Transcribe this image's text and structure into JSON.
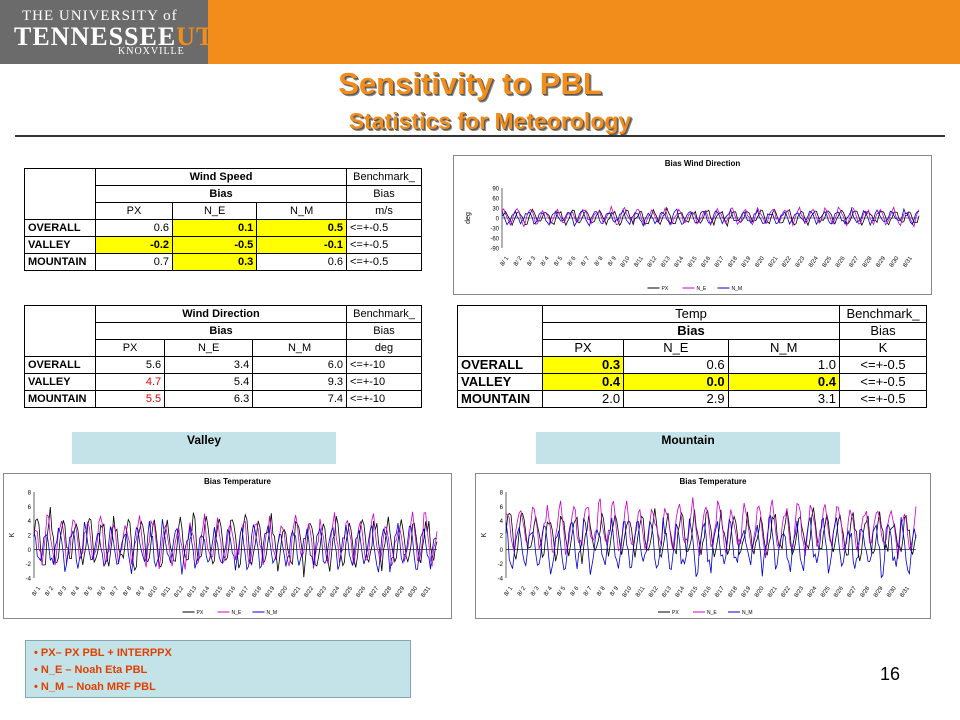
{
  "header": {
    "logo_line1": "THE UNIVERSITY of",
    "logo_line2a": "TENNESSEE",
    "logo_line2b": "UT",
    "logo_line3": "KNOXVILLE",
    "title": "Sensitivity to PBL",
    "subtitle": "Statistics for Meteorology"
  },
  "tables": {
    "wind_speed": {
      "title": "Wind Speed",
      "bench_title": "Benchmark_",
      "bias_label": "Bias",
      "bench_bias": "Bias",
      "cols": [
        "PX",
        "N_E",
        "N_M"
      ],
      "unit": "m/s",
      "rows": [
        {
          "label": "OVERALL",
          "v": [
            "0.6",
            "0.1",
            "0.5"
          ],
          "bench": "<=+-0.5"
        },
        {
          "label": "VALLEY",
          "v": [
            "-0.2",
            "-0.5",
            "-0.1"
          ],
          "bench": "<=+-0.5"
        },
        {
          "label": "MOUNTAIN",
          "v": [
            "0.7",
            "0.3",
            "0.6"
          ],
          "bench": "<=+-0.5"
        }
      ]
    },
    "wind_dir": {
      "title": "Wind Direction",
      "bench_title": "Benchmark_",
      "bias_label": "Bias",
      "bench_bias": "Bias",
      "cols": [
        "PX",
        "N_E",
        "N_M"
      ],
      "unit": "deg",
      "rows": [
        {
          "label": "OVERALL",
          "v": [
            "5.6",
            "3.4",
            "6.0"
          ],
          "bench": "<=+-10"
        },
        {
          "label": "VALLEY",
          "v": [
            "4.7",
            "5.4",
            "9.3"
          ],
          "bench": "<=+-10"
        },
        {
          "label": "MOUNTAIN",
          "v": [
            "5.5",
            "6.3",
            "7.4"
          ],
          "bench": "<=+-10"
        }
      ]
    },
    "temp": {
      "title": "Temp",
      "bench_title": "Benchmark_",
      "bias_label": "Bias",
      "bench_bias": "Bias",
      "cols": [
        "PX",
        "N_E",
        "N_M"
      ],
      "unit": "K",
      "rows": [
        {
          "label": "OVERALL",
          "v": [
            "0.3",
            "0.6",
            "1.0"
          ],
          "bench": "<=+-0.5"
        },
        {
          "label": "VALLEY",
          "v": [
            "0.4",
            "0.0",
            "0.4"
          ],
          "bench": "<=+-0.5"
        },
        {
          "label": "MOUNTAIN",
          "v": [
            "2.0",
            "2.9",
            "3.1"
          ],
          "bench": "<=+-0.5"
        }
      ]
    }
  },
  "regions": {
    "valley": "Valley",
    "mountain": "Mountain"
  },
  "legend_items": [
    "PX– PX PBL + INTERPPX",
    "N_E – Noah Eta PBL",
    "N_M – Noah MRF PBL"
  ],
  "page_number": "16",
  "colors": {
    "px": "#000000",
    "ne": "#cc00cc",
    "nm": "#0000cc",
    "accent": "#f28c1b",
    "highlight": "#ffff00"
  },
  "chart_data": [
    {
      "type": "line",
      "title": "Bias Wind Direction",
      "ylabel": "deg",
      "ylim": [
        -90,
        90
      ],
      "yticks": [
        90,
        60,
        30,
        0,
        -30,
        -60,
        -90
      ],
      "categories": [
        "8/ 1",
        "8/ 2",
        "8/ 3",
        "8/ 4",
        "8/ 5",
        "8/ 6",
        "8/ 7",
        "8/ 8",
        "8/ 9",
        "8/10",
        "8/11",
        "8/12",
        "8/13",
        "8/14",
        "8/15",
        "8/16",
        "8/17",
        "8/18",
        "8/19",
        "8/20",
        "8/21",
        "8/22",
        "8/23",
        "8/24",
        "8/25",
        "8/26",
        "8/27",
        "8/28",
        "8/29",
        "8/30",
        "8/31"
      ],
      "series": [
        {
          "name": "PX",
          "amp": 18,
          "offset": 3
        },
        {
          "name": "N_E",
          "amp": 20,
          "offset": 5
        },
        {
          "name": "N_M",
          "amp": 17,
          "offset": 2
        }
      ]
    },
    {
      "type": "line",
      "title": "Bias Temperature",
      "region": "Valley",
      "ylabel": "K",
      "ylim": [
        -4,
        8
      ],
      "yticks": [
        8,
        6,
        4,
        2,
        0,
        -2,
        -4
      ],
      "categories": [
        "8/ 1",
        "8/ 2",
        "8/ 3",
        "8/ 4",
        "8/ 5",
        "8/ 6",
        "8/ 7",
        "8/ 8",
        "8/ 9",
        "8/10",
        "8/11",
        "8/12",
        "8/13",
        "8/14",
        "8/15",
        "8/16",
        "8/17",
        "8/18",
        "8/19",
        "8/20",
        "8/21",
        "8/22",
        "8/23",
        "8/24",
        "8/25",
        "8/26",
        "8/27",
        "8/28",
        "8/29",
        "8/30",
        "8/31"
      ],
      "series": [
        {
          "name": "PX",
          "amp": 3,
          "offset": 1
        },
        {
          "name": "N_E",
          "amp": 2.8,
          "offset": 1.2
        },
        {
          "name": "N_M",
          "amp": 2.5,
          "offset": 0.3
        }
      ]
    },
    {
      "type": "line",
      "title": "Bias Temperature",
      "region": "Mountain",
      "ylabel": "K",
      "ylim": [
        -4,
        8
      ],
      "yticks": [
        8,
        6,
        4,
        2,
        0,
        -2,
        -4
      ],
      "categories": [
        "8/ 1",
        "8/ 2",
        "8/ 3",
        "8/ 4",
        "8/ 5",
        "8/ 6",
        "8/ 7",
        "8/ 8",
        "8/ 9",
        "8/10",
        "8/11",
        "8/12",
        "8/13",
        "8/14",
        "8/15",
        "8/16",
        "8/17",
        "8/18",
        "8/19",
        "8/20",
        "8/21",
        "8/22",
        "8/23",
        "8/24",
        "8/25",
        "8/26",
        "8/27",
        "8/28",
        "8/29",
        "8/30",
        "8/31"
      ],
      "series": [
        {
          "name": "PX",
          "amp": 2.5,
          "offset": 2
        },
        {
          "name": "N_E",
          "amp": 2.8,
          "offset": 3
        },
        {
          "name": "N_M",
          "amp": 3,
          "offset": 0.5
        }
      ]
    }
  ]
}
